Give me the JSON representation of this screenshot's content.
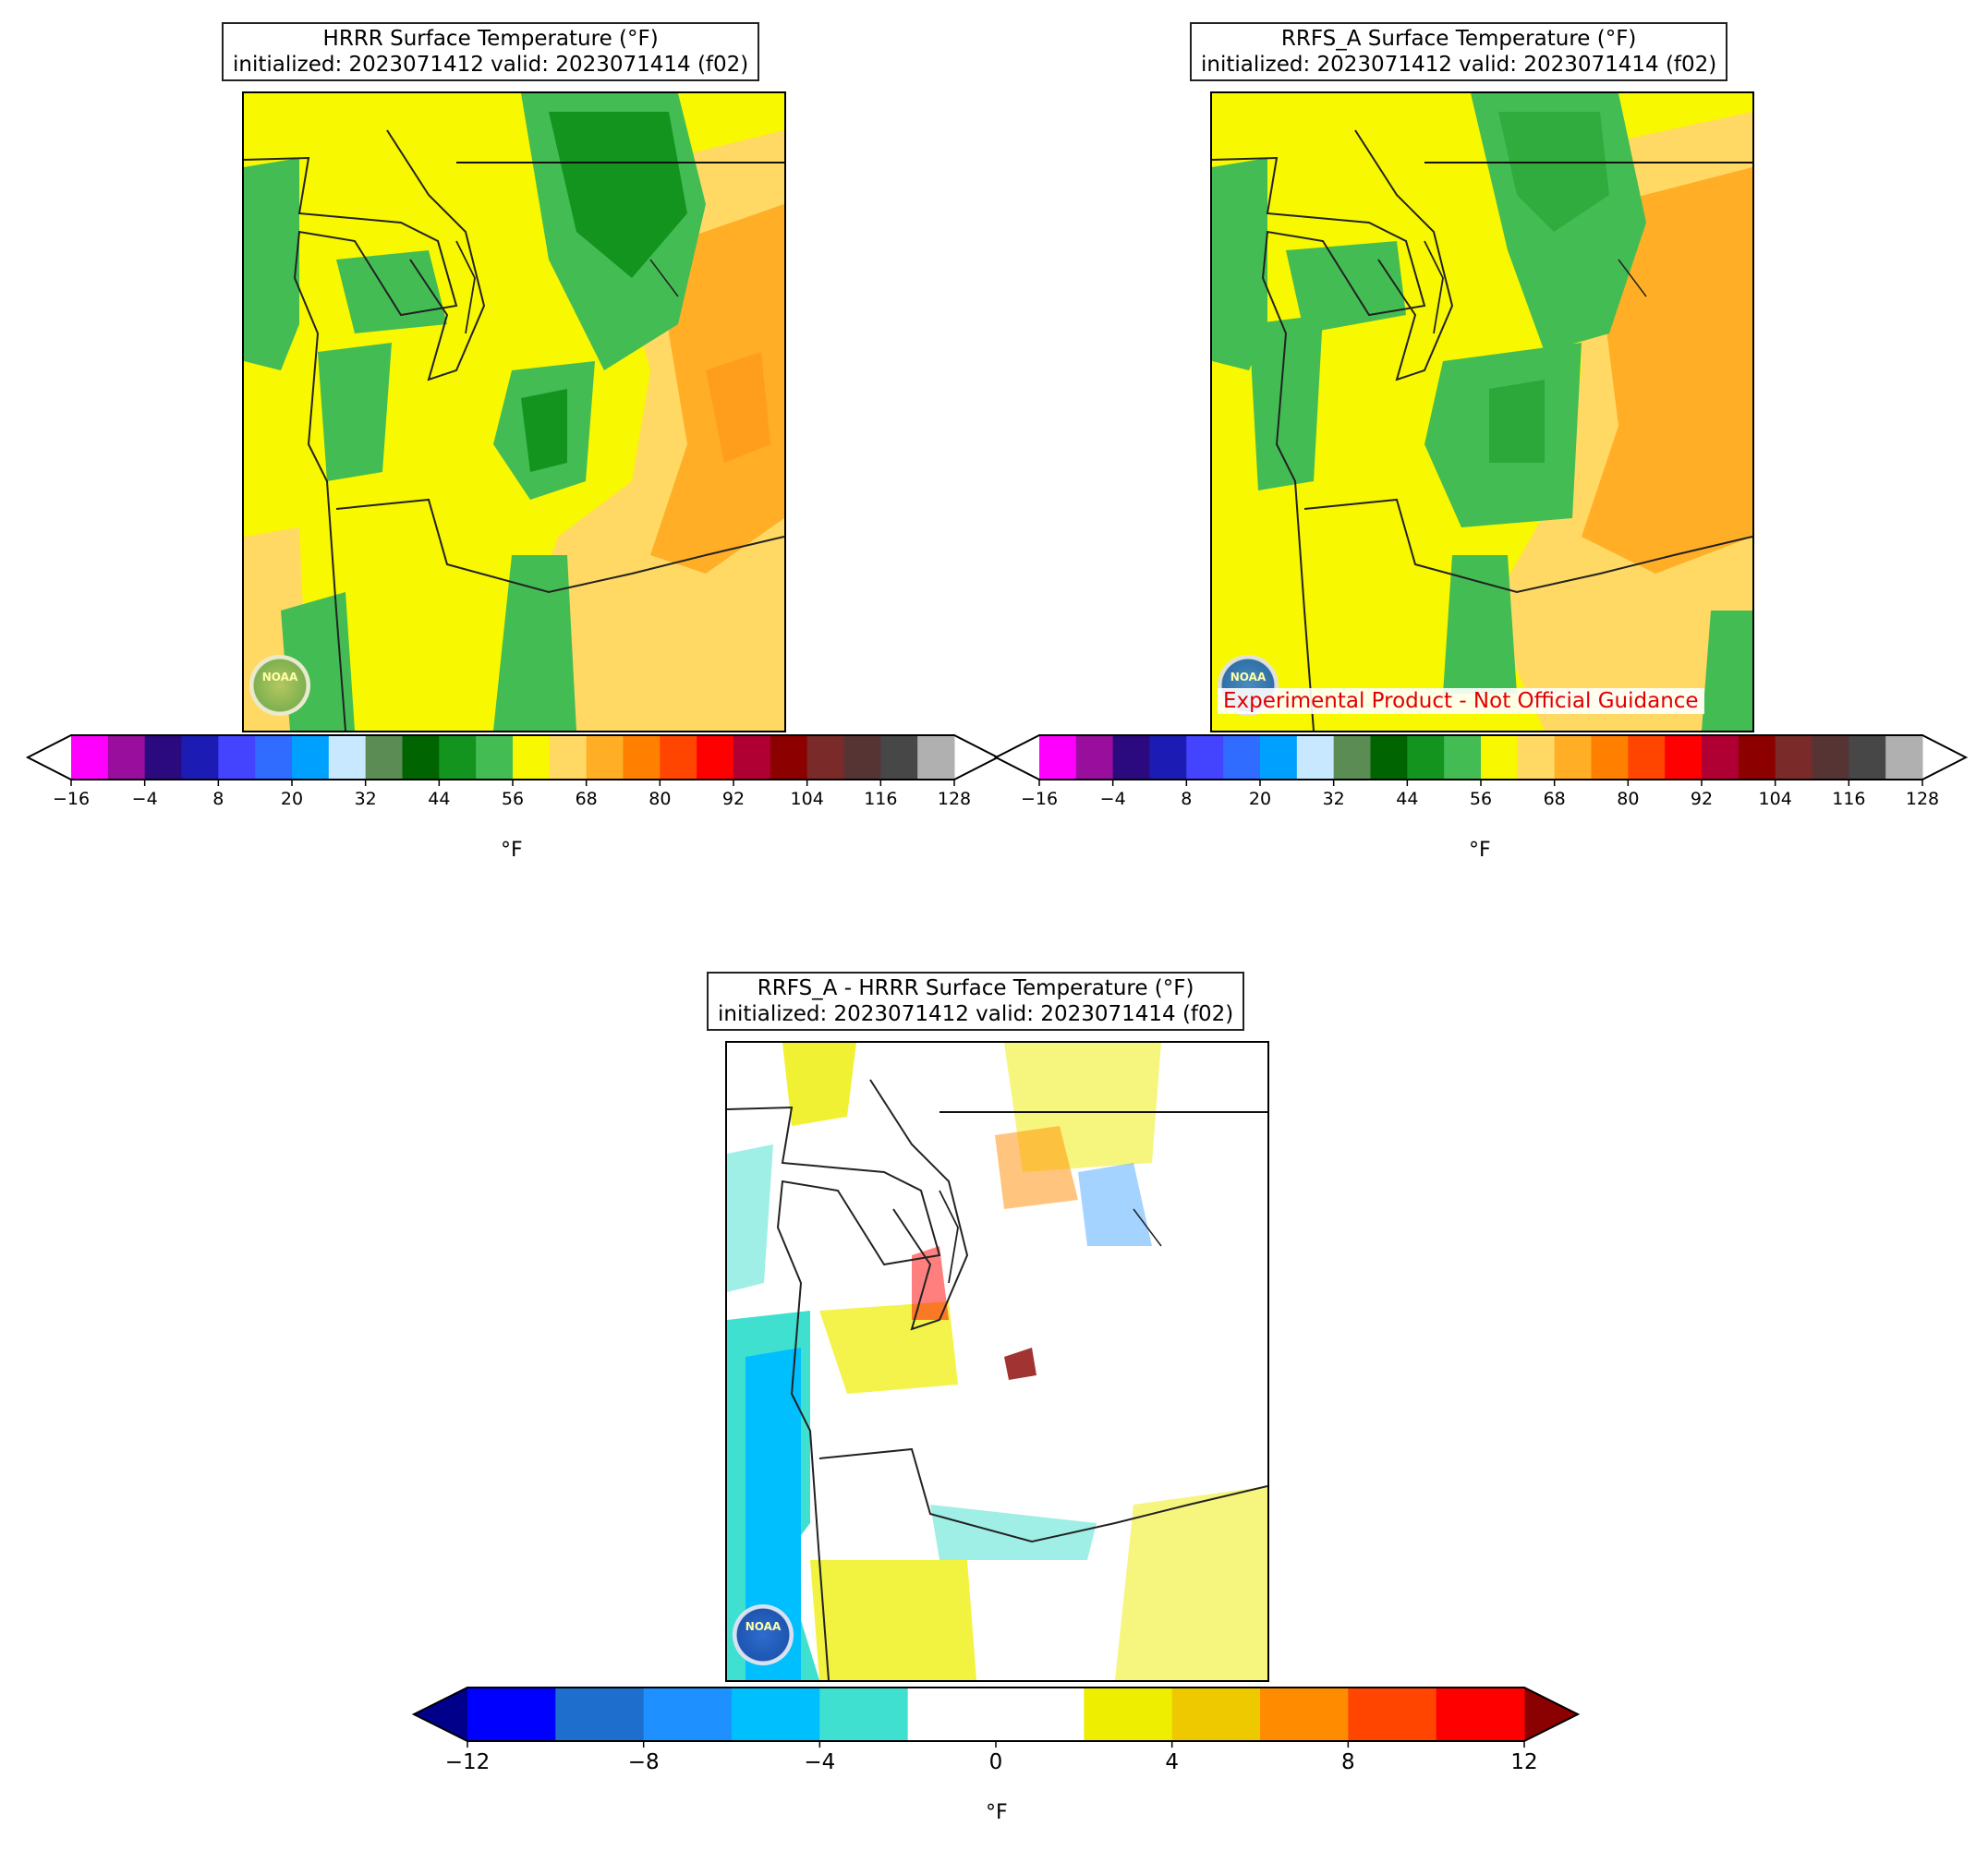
{
  "panels": {
    "hrrr": {
      "title_line1": "HRRR Surface Temperature (°F)",
      "title_line2": "initialized: 2023071412 valid: 2023071414 (f02)"
    },
    "rrfs": {
      "title_line1": "RRFS_A Surface Temperature (°F)",
      "title_line2": "initialized: 2023071412 valid: 2023071414 (f02)",
      "watermark": "Experimental Product - Not Official Guidance"
    },
    "diff": {
      "title_line1": "RRFS_A - HRRR Surface Temperature (°F)",
      "title_line2": "initialized: 2023071412 valid: 2023071414 (f02)"
    }
  },
  "logo_text": "NOAA",
  "temp_colorbar": {
    "unit": "°F",
    "tick_labels": [
      "−16",
      "−4",
      "8",
      "20",
      "32",
      "44",
      "56",
      "68",
      "80",
      "92",
      "104",
      "116",
      "128"
    ],
    "colors": [
      "#ff00ff",
      "#9a0e9e",
      "#2a0a7e",
      "#1c1cb4",
      "#4444ff",
      "#2f6cff",
      "#00a0ff",
      "#c8e8ff",
      "#5a8c54",
      "#006400",
      "#13941f",
      "#44bc54",
      "#f8f800",
      "#ffd964",
      "#ffae26",
      "#ff7f00",
      "#ff4500",
      "#ff0000",
      "#b00033",
      "#8c0000",
      "#7b2a2a",
      "#573434",
      "#474747",
      "#b0b0b0"
    ],
    "extend_min_color": "#ffffff",
    "extend_max_color": "#ffffff"
  },
  "diff_colorbar": {
    "unit": "°F",
    "tick_labels": [
      "−12",
      "−8",
      "−4",
      "0",
      "4",
      "8",
      "12"
    ],
    "colors": [
      "#0000ff",
      "#1e6fcd",
      "#1e90ff",
      "#00bfff",
      "#40e0d0",
      "#ffffff",
      "#ffffff",
      "#eeee00",
      "#eec900",
      "#ff8c00",
      "#ff4500",
      "#ff0000"
    ],
    "extend_min_color": "#00008b",
    "extend_max_color": "#8b0000"
  }
}
